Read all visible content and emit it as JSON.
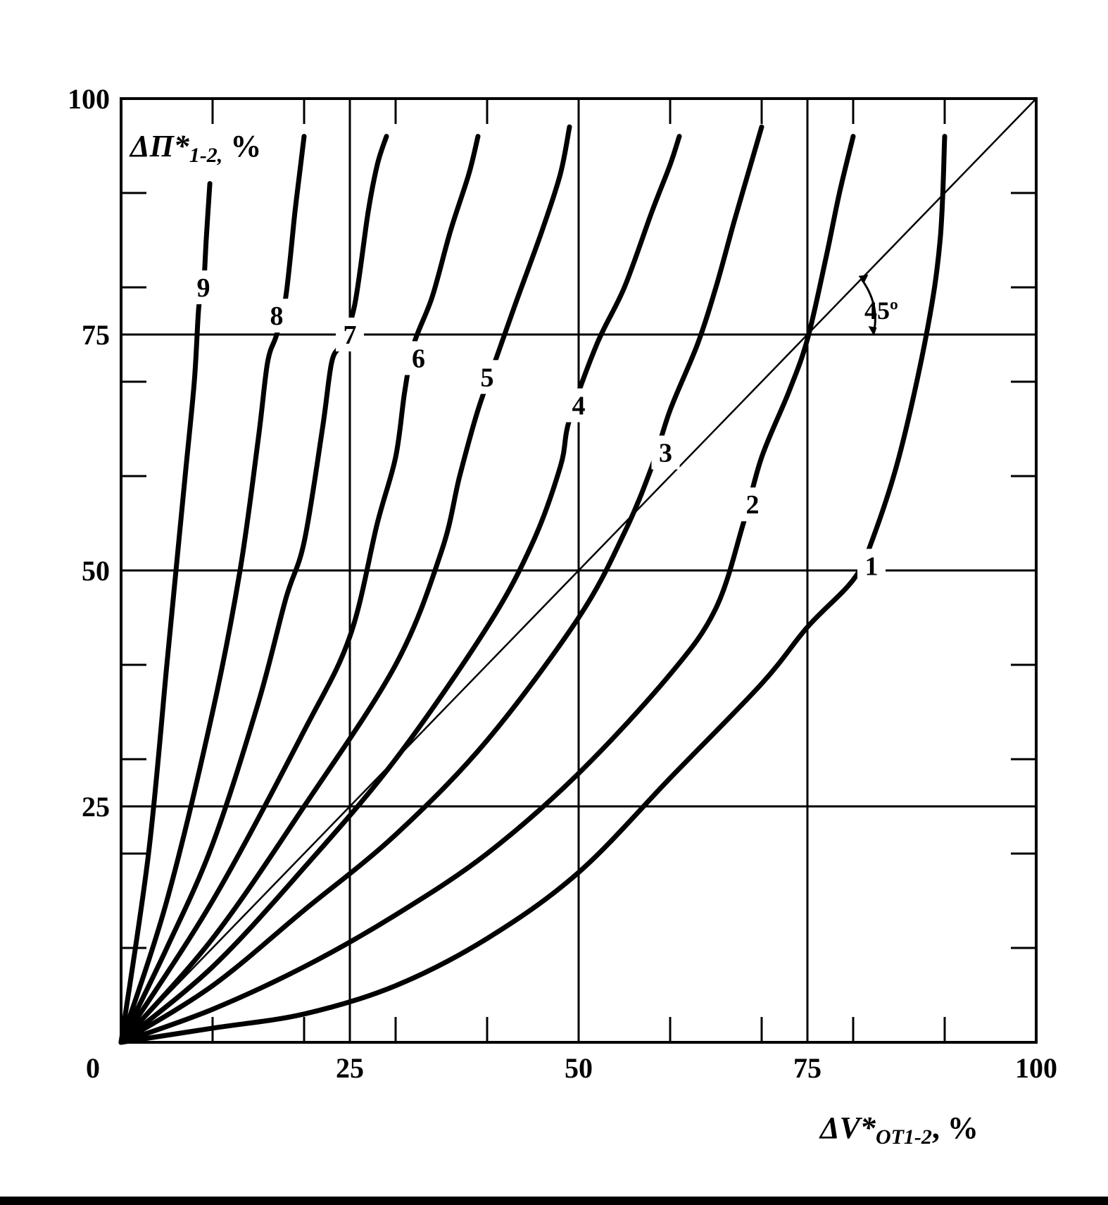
{
  "chart_data": {
    "type": "line",
    "xlabel": {
      "main": "ΔV*",
      "sub": "OT1-2",
      "unit": ", %"
    },
    "ylabel": {
      "main": "ΔП*",
      "sub": "1-2,",
      "unit": " %"
    },
    "xlim": [
      0,
      100
    ],
    "ylim": [
      0,
      100
    ],
    "origin_label": "0",
    "x_ticks": [
      25,
      50,
      75,
      100
    ],
    "y_ticks": [
      25,
      50,
      75,
      100
    ],
    "x_tick_labels": [
      "25",
      "50",
      "75",
      "100"
    ],
    "y_tick_labels": [
      "25",
      "50",
      "75",
      "100"
    ],
    "minor_tick_step": 10,
    "grid": "major lines at 25, 50, 75",
    "reference_line": {
      "slope_deg": 45,
      "label": "45º"
    },
    "series": [
      {
        "label": "1",
        "label_at": [
          82,
          50.5
        ],
        "points": [
          [
            0,
            0
          ],
          [
            10,
            1.5
          ],
          [
            20,
            3
          ],
          [
            30,
            6
          ],
          [
            40,
            11
          ],
          [
            50,
            18
          ],
          [
            60,
            28
          ],
          [
            70,
            38
          ],
          [
            75,
            44
          ],
          [
            80,
            49
          ],
          [
            82,
            53
          ],
          [
            85,
            62
          ],
          [
            88,
            75
          ],
          [
            89.5,
            85
          ],
          [
            90,
            96
          ]
        ]
      },
      {
        "label": "2",
        "label_at": [
          69,
          57
        ],
        "points": [
          [
            0,
            0
          ],
          [
            10,
            3.5
          ],
          [
            20,
            8
          ],
          [
            30,
            13.5
          ],
          [
            40,
            20
          ],
          [
            50,
            28.5
          ],
          [
            60,
            39
          ],
          [
            65,
            46
          ],
          [
            68,
            55
          ],
          [
            70,
            62
          ],
          [
            73,
            69
          ],
          [
            75,
            74.5
          ],
          [
            77,
            83
          ],
          [
            78.5,
            90
          ],
          [
            80,
            96
          ]
        ]
      },
      {
        "label": "3",
        "label_at": [
          59.5,
          62.5
        ],
        "points": [
          [
            0,
            0
          ],
          [
            10,
            6
          ],
          [
            20,
            14
          ],
          [
            30,
            22
          ],
          [
            40,
            32
          ],
          [
            50,
            45
          ],
          [
            55,
            54
          ],
          [
            58,
            61
          ],
          [
            60,
            67
          ],
          [
            63,
            74
          ],
          [
            65,
            80
          ],
          [
            67,
            87
          ],
          [
            68.5,
            92
          ],
          [
            70,
            97
          ]
        ]
      },
      {
        "label": "4",
        "label_at": [
          50,
          67.5
        ],
        "points": [
          [
            0,
            0
          ],
          [
            10,
            8
          ],
          [
            20,
            18.5
          ],
          [
            30,
            30
          ],
          [
            40,
            44
          ],
          [
            45,
            53
          ],
          [
            48,
            61
          ],
          [
            49,
            66
          ],
          [
            52,
            74
          ],
          [
            55,
            80
          ],
          [
            58,
            88
          ],
          [
            60,
            93
          ],
          [
            61,
            96
          ]
        ]
      },
      {
        "label": "5",
        "label_at": [
          40,
          70.5
        ],
        "points": [
          [
            0,
            0
          ],
          [
            10,
            11
          ],
          [
            20,
            25
          ],
          [
            30,
            40
          ],
          [
            35,
            52
          ],
          [
            37,
            60
          ],
          [
            39,
            67
          ],
          [
            41,
            72.5
          ],
          [
            43,
            78
          ],
          [
            46,
            86
          ],
          [
            48,
            92
          ],
          [
            49,
            97
          ]
        ]
      },
      {
        "label": "6",
        "label_at": [
          32.5,
          72.5
        ],
        "points": [
          [
            0,
            0
          ],
          [
            10,
            15
          ],
          [
            20,
            33
          ],
          [
            25,
            43
          ],
          [
            28,
            55
          ],
          [
            30,
            62
          ],
          [
            31,
            69
          ],
          [
            32,
            74
          ],
          [
            34,
            79
          ],
          [
            36,
            86
          ],
          [
            38,
            92
          ],
          [
            39,
            96
          ]
        ]
      },
      {
        "label": "7",
        "label_at": [
          25,
          75
        ],
        "points": [
          [
            0,
            0
          ],
          [
            5,
            10
          ],
          [
            10,
            21
          ],
          [
            15,
            36
          ],
          [
            18,
            47
          ],
          [
            20,
            53
          ],
          [
            22,
            65
          ],
          [
            23,
            72
          ],
          [
            24,
            74
          ],
          [
            25.5,
            78
          ],
          [
            27,
            88
          ],
          [
            28,
            93
          ],
          [
            29,
            96
          ]
        ]
      },
      {
        "label": "8",
        "label_at": [
          17,
          77
        ],
        "points": [
          [
            0,
            0
          ],
          [
            5,
            15
          ],
          [
            10,
            35
          ],
          [
            13,
            50
          ],
          [
            15,
            64
          ],
          [
            16,
            72
          ],
          [
            17,
            75
          ],
          [
            18,
            79
          ],
          [
            19,
            88
          ],
          [
            19.5,
            92
          ],
          [
            20,
            96
          ]
        ]
      },
      {
        "label": "9",
        "label_at": [
          9,
          80
        ],
        "points": [
          [
            0,
            0
          ],
          [
            3,
            20
          ],
          [
            5,
            40
          ],
          [
            6,
            50
          ],
          [
            7,
            60
          ],
          [
            8,
            70
          ],
          [
            8.5,
            78
          ],
          [
            9,
            80
          ],
          [
            9.3,
            85
          ],
          [
            9.7,
            91
          ]
        ]
      }
    ]
  },
  "angle_annotation": "45º"
}
